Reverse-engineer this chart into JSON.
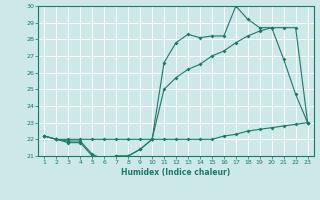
{
  "xlabel": "Humidex (Indice chaleur)",
  "x": [
    1,
    2,
    3,
    4,
    5,
    6,
    7,
    8,
    9,
    10,
    11,
    12,
    13,
    14,
    15,
    16,
    17,
    18,
    19,
    20,
    21,
    22,
    23
  ],
  "y_line1": [
    22.2,
    22.0,
    21.9,
    21.9,
    21.1,
    20.8,
    21.0,
    21.0,
    21.4,
    22.0,
    22.0,
    22.0,
    22.0,
    22.0,
    22.0,
    22.2,
    22.3,
    22.5,
    22.6,
    22.7,
    22.8,
    22.9,
    23.0
  ],
  "y_line2": [
    22.2,
    22.0,
    21.8,
    21.8,
    21.0,
    20.8,
    21.0,
    21.0,
    21.4,
    22.0,
    26.6,
    27.8,
    28.3,
    28.1,
    28.2,
    28.2,
    30.0,
    29.2,
    28.7,
    28.7,
    26.8,
    24.7,
    23.0
  ],
  "y_line3": [
    22.2,
    22.0,
    22.0,
    22.0,
    22.0,
    22.0,
    22.0,
    22.0,
    22.0,
    22.0,
    25.0,
    25.7,
    26.2,
    26.5,
    27.0,
    27.3,
    27.8,
    28.2,
    28.5,
    28.7,
    28.7,
    28.7,
    23.0
  ],
  "ylim": [
    21,
    30
  ],
  "xlim": [
    0.5,
    23.5
  ],
  "yticks": [
    21,
    22,
    23,
    24,
    25,
    26,
    27,
    28,
    29,
    30
  ],
  "xticks": [
    1,
    2,
    3,
    4,
    5,
    6,
    7,
    8,
    9,
    10,
    11,
    12,
    13,
    14,
    15,
    16,
    17,
    18,
    19,
    20,
    21,
    22,
    23
  ],
  "bg_color": "#cce8e8",
  "line_color": "#1a7a6a",
  "grid_color": "#ffffff",
  "markersize": 2.0,
  "linewidth": 0.8,
  "tick_fontsize": 4.5,
  "xlabel_fontsize": 5.5
}
